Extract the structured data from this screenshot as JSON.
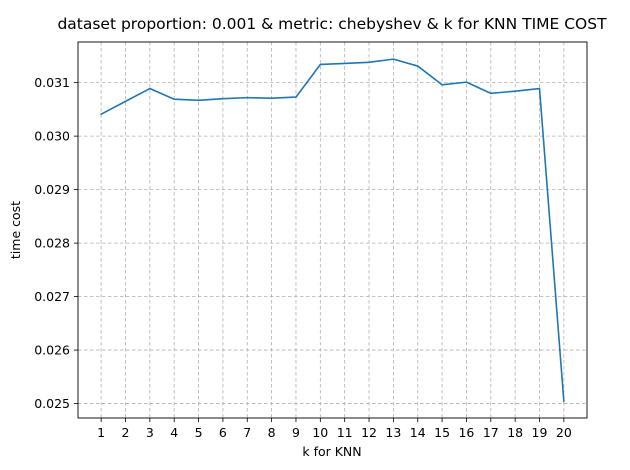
{
  "chart_data": {
    "type": "line",
    "title": "dataset proportion: 0.001 & metric: chebyshev & k for KNN TIME COST",
    "xlabel": "k for KNN",
    "ylabel": "time cost",
    "x": [
      1,
      2,
      3,
      4,
      5,
      6,
      7,
      8,
      9,
      10,
      11,
      12,
      13,
      14,
      15,
      16,
      17,
      18,
      19,
      20
    ],
    "x_ticks": [
      "1",
      "2",
      "3",
      "4",
      "5",
      "6",
      "7",
      "8",
      "9",
      "10",
      "11",
      "12",
      "13",
      "14",
      "15",
      "16",
      "17",
      "18",
      "19",
      "20"
    ],
    "y_ticks": [
      "0.025",
      "0.026",
      "0.027",
      "0.028",
      "0.029",
      "0.030",
      "0.031"
    ],
    "series": [
      {
        "values": [
          0.03041,
          0.03065,
          0.03089,
          0.03069,
          0.03067,
          0.0307,
          0.03072,
          0.03071,
          0.03073,
          0.03134,
          0.03136,
          0.03138,
          0.03144,
          0.03131,
          0.03096,
          0.03101,
          0.0308,
          0.03084,
          0.03089,
          0.02504
        ],
        "color": "#1f77b4"
      }
    ],
    "xlim": [
      0.05,
      20.95
    ],
    "ylim": [
      0.02473,
      0.03176
    ],
    "grid": true,
    "legend": "none"
  }
}
